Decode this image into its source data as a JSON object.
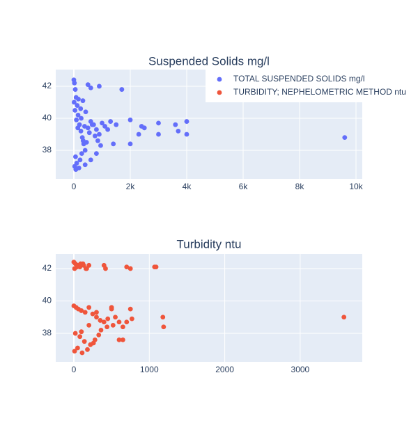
{
  "chart_data": [
    {
      "type": "scatter",
      "title": "Suspended Solids mg/l",
      "xlim": [
        -642,
        10222
      ],
      "ylim": [
        36.22,
        43.04
      ],
      "xticks": [
        0,
        {
          "value": 2000,
          "label": "2k"
        },
        {
          "value": 4000,
          "label": "4k"
        },
        {
          "value": 6000,
          "label": "6k"
        },
        {
          "value": 8000,
          "label": "8k"
        },
        {
          "value": 10000,
          "label": "10k"
        }
      ],
      "yticks": [
        38,
        40,
        42
      ],
      "grid": true,
      "series": [
        {
          "name": "TOTAL SUSPENDED SOLIDS mg/l",
          "color": "#636efa",
          "x": [
            0,
            20,
            50,
            80,
            120,
            150,
            200,
            250,
            300,
            350,
            400,
            60,
            100,
            180,
            220,
            280,
            330,
            500,
            600,
            700,
            800,
            900,
            1000,
            10,
            40,
            90,
            140,
            260,
            380,
            450,
            550,
            650,
            750,
            850,
            950,
            30,
            70,
            160,
            240,
            320,
            420,
            900,
            600,
            500,
            1700,
            2000,
            2400,
            2500,
            3000,
            3000,
            3600,
            3700,
            4000,
            4000,
            9600,
            1400,
            2000,
            2300,
            1300,
            1100,
            1200,
            1500,
            800,
            600,
            400
          ],
          "values": [
            42.4,
            42.2,
            41.8,
            41.3,
            40.8,
            40.2,
            39.6,
            39.2,
            38.8,
            38.4,
            38.0,
            37.6,
            37.2,
            36.9,
            37.4,
            37.8,
            38.6,
            39.4,
            39.8,
            39.6,
            39.3,
            39.0,
            39.7,
            41.0,
            40.5,
            39.9,
            39.4,
            40.0,
            39.5,
            38.5,
            39.1,
            39.6,
            38.9,
            38.6,
            38.3,
            37.0,
            36.8,
            41.2,
            40.6,
            41.1,
            40.4,
            42.0,
            41.9,
            42.1,
            41.8,
            39.9,
            39.5,
            39.4,
            39.7,
            39.0,
            39.6,
            39.2,
            39.8,
            39.0,
            38.8,
            38.4,
            38.4,
            39.0,
            39.8,
            39.5,
            39.3,
            39.6,
            37.8,
            37.4,
            37.1
          ]
        }
      ]
    },
    {
      "type": "scatter",
      "title": "Turbidity ntu",
      "xlim": [
        -240,
        3823
      ],
      "ylim": [
        36.24,
        42.9
      ],
      "xticks": [
        0,
        1000,
        2000,
        3000
      ],
      "yticks": [
        38,
        40,
        42
      ],
      "grid": true,
      "series": [
        {
          "name": "TURBIDITY; NEPHELOMETRIC METHOD ntu",
          "color": "#ef553b",
          "x": [
            0,
            20,
            50,
            80,
            120,
            160,
            200,
            10,
            40,
            90,
            130,
            170,
            400,
            420,
            700,
            750,
            1070,
            1090,
            0,
            30,
            60,
            100,
            150,
            200,
            250,
            300,
            350,
            400,
            450,
            500,
            550,
            600,
            650,
            700,
            750,
            770,
            20,
            80,
            140,
            220,
            280,
            360,
            440,
            520,
            600,
            650,
            10,
            50,
            110,
            180,
            260,
            330,
            3580,
            1180,
            1190,
            500,
            300,
            200,
            100
          ],
          "values": [
            42.4,
            42.3,
            42.2,
            42.1,
            42.3,
            42.0,
            42.2,
            42.0,
            42.1,
            42.3,
            42.2,
            42.0,
            42.2,
            42.0,
            42.1,
            42.0,
            42.1,
            42.1,
            39.7,
            39.6,
            39.5,
            39.4,
            39.3,
            39.6,
            39.2,
            39.0,
            38.8,
            38.7,
            38.9,
            39.5,
            39.0,
            38.7,
            37.6,
            38.7,
            39.5,
            38.9,
            38.0,
            37.8,
            37.5,
            37.3,
            37.6,
            38.2,
            38.4,
            38.5,
            37.6,
            38.4,
            36.9,
            37.1,
            36.8,
            37.0,
            37.4,
            37.9,
            39.0,
            39.0,
            38.4,
            39.6,
            39.3,
            38.5,
            38.1
          ]
        }
      ]
    }
  ]
}
